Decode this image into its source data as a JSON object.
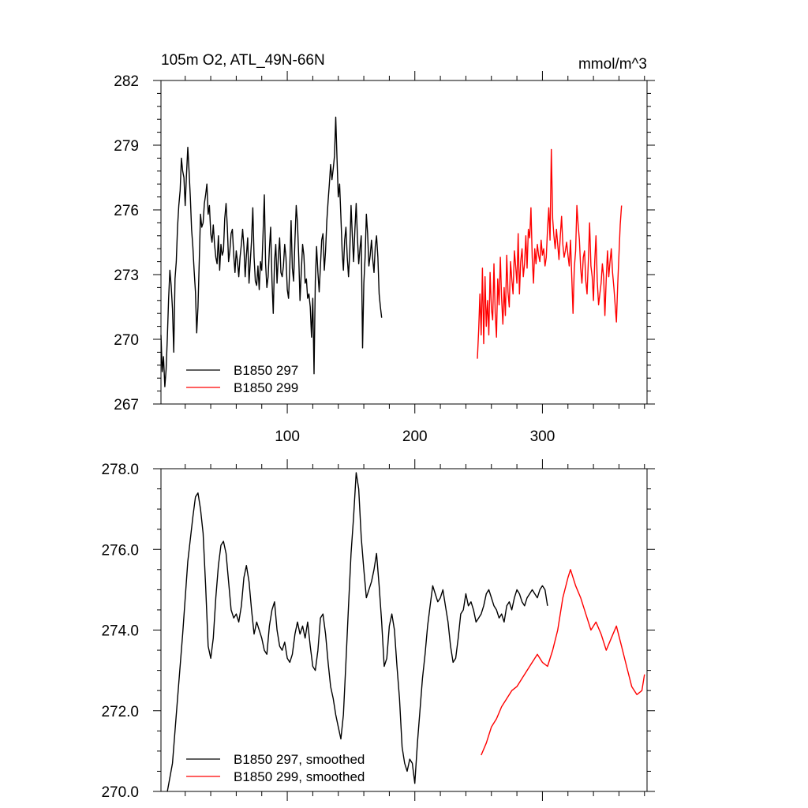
{
  "chart_data": [
    {
      "type": "line",
      "title_left": "105m O2, ATL_49N-66N",
      "title_right": "mmol/m^3",
      "xlim": [
        1,
        382
      ],
      "ylim": [
        267,
        282
      ],
      "y_ticks": [
        {
          "value": 267,
          "label": "267"
        },
        {
          "value": 270,
          "label": "270"
        },
        {
          "value": 273,
          "label": "273"
        },
        {
          "value": 276,
          "label": "276"
        },
        {
          "value": 279,
          "label": "279"
        },
        {
          "value": 282,
          "label": "282"
        }
      ],
      "x_ticks": [
        {
          "value": 100,
          "label": "100"
        },
        {
          "value": 200,
          "label": "200"
        },
        {
          "value": 300,
          "label": "300"
        }
      ],
      "series": [
        {
          "name": "B1850 297",
          "color": "#000000",
          "x_start": 1,
          "values": [
            270.2,
            268.5,
            269.2,
            267.8,
            268.6,
            270.1,
            271.9,
            273.2,
            272.5,
            271.4,
            269.4,
            272.8,
            273.6,
            275.2,
            276.2,
            276.9,
            278.4,
            277.8,
            277.5,
            276.2,
            277.6,
            278.9,
            277.8,
            276.6,
            275.1,
            274.3,
            273.2,
            272.2,
            270.3,
            271.5,
            273.6,
            275.8,
            275.2,
            275.4,
            276.3,
            276.7,
            277.2,
            275.8,
            276.2,
            274.9,
            274.5,
            275.3,
            274.4,
            273.8,
            273.5,
            274.8,
            273.2,
            274.4,
            273.9,
            274.1,
            275.6,
            276.3,
            275.2,
            273.6,
            274.1,
            274.9,
            275.1,
            273.9,
            273.1,
            274.1,
            273.6,
            272.9,
            273.8,
            274.4,
            275.1,
            274.3,
            272.9,
            273.9,
            274.7,
            272.6,
            273.6,
            274.6,
            276.1,
            273.8,
            272.7,
            272.5,
            273.4,
            272.3,
            273.6,
            273.2,
            274.8,
            276.7,
            273.5,
            272.4,
            272.9,
            274.2,
            275.2,
            272.7,
            271.2,
            273.6,
            274.4,
            272.6,
            273.8,
            274.7,
            273.1,
            272.9,
            273.4,
            274.4,
            273.8,
            272.3,
            271.9,
            273.4,
            275.5,
            273.3,
            272.7,
            274.6,
            276.2,
            275.4,
            273.8,
            271.8,
            273.1,
            274.4,
            273.9,
            272.6,
            272.8,
            271.9,
            272.1,
            271.5,
            270.1,
            271.9,
            268.4,
            272.7,
            274.3,
            273.1,
            272.2,
            273.4,
            274.6,
            274.9,
            273.2,
            274.1,
            275.5,
            276.4,
            277.2,
            278.1,
            277.4,
            277.9,
            278.5,
            280.3,
            278.4,
            276.6,
            277.2,
            275.7,
            274.1,
            273.2,
            274.6,
            275.2,
            273.8,
            272.9,
            274.1,
            276.2,
            274.8,
            273.6,
            275.1,
            276.3,
            274.7,
            273.5,
            274.2,
            274.8,
            269.6,
            272.6,
            273.8,
            275.8,
            274.9,
            273.4,
            273.9,
            274.6,
            273.7,
            273.1,
            274.3,
            274.8,
            273.8,
            272.1,
            271.5,
            271.0
          ],
          "gaps_note": ""
        },
        {
          "name": "B1850 299",
          "color": "#ff0000",
          "x_start": 249,
          "values": [
            269.1,
            270.4,
            272.1,
            270.2,
            273.3,
            269.8,
            272.9,
            270.6,
            271.8,
            270.2,
            273.1,
            271.4,
            270.9,
            273.5,
            271.2,
            270.1,
            272.8,
            271.6,
            273.8,
            271.9,
            270.7,
            272.4,
            271.1,
            273.9,
            272.2,
            271.5,
            273.6,
            272.8,
            272.1,
            274.1,
            273.4,
            272.6,
            274.9,
            272.1,
            273.6,
            274.2,
            272.9,
            273.5,
            274.8,
            273.3,
            275.1,
            274.7,
            276.1,
            273.8,
            272.6,
            274.2,
            273.5,
            274.4,
            273.9,
            273.6,
            274.6,
            273.9,
            274.2,
            273.4,
            273.8,
            275.1,
            276.1,
            274.6,
            278.8,
            275.6,
            274.8,
            274.2,
            275.1,
            274.4,
            273.7,
            274.8,
            275.7,
            274.4,
            273.8,
            274.1,
            274.5,
            273.9,
            273.4,
            274.6,
            272.9,
            271.2,
            273.3,
            274.1,
            276.2,
            275.3,
            274.6,
            273.3,
            272.6,
            273.8,
            274.1,
            272.7,
            272.1,
            273.6,
            275.4,
            273.4,
            272.9,
            271.8,
            273.6,
            274.8,
            272.7,
            271.6,
            272.1,
            272.6,
            273.5,
            272.9,
            271.1,
            272.8,
            274.1,
            272.9,
            273.6,
            274.2,
            273.1,
            272.4,
            271.6,
            270.8,
            272.5,
            273.9,
            275.3,
            276.2
          ]
        }
      ],
      "legend": {
        "placement": "bottom-left",
        "entries": [
          "B1850 297",
          "B1850 299"
        ]
      }
    },
    {
      "type": "line",
      "title_left": "",
      "title_right": "",
      "xlim": [
        1,
        382
      ],
      "ylim": [
        270.0,
        278.0
      ],
      "y_ticks": [
        {
          "value": 270,
          "label": "270.0"
        },
        {
          "value": 272,
          "label": "272.0"
        },
        {
          "value": 274,
          "label": "274.0"
        },
        {
          "value": 276,
          "label": "276.0"
        },
        {
          "value": 278,
          "label": "278.0"
        }
      ],
      "x_ticks": [
        {
          "value": 100,
          "label": ""
        },
        {
          "value": 200,
          "label": ""
        },
        {
          "value": 300,
          "label": ""
        }
      ],
      "series": [
        {
          "name": "B1850 297, smoothed",
          "color": "#000000",
          "x": [
            6,
            10,
            14,
            18,
            22,
            26,
            28,
            30,
            32,
            34,
            36,
            38,
            40,
            42,
            44,
            46,
            48,
            50,
            52,
            54,
            56,
            58,
            60,
            62,
            64,
            66,
            68,
            70,
            72,
            74,
            76,
            78,
            80,
            82,
            84,
            86,
            88,
            90,
            92,
            94,
            96,
            98,
            100,
            102,
            104,
            106,
            108,
            110,
            112,
            114,
            116,
            118,
            120,
            122,
            124,
            126,
            128,
            130,
            132,
            134,
            136,
            138,
            140,
            142,
            144,
            146,
            148,
            150,
            152,
            154,
            156,
            158,
            160,
            162,
            164,
            166,
            168,
            170,
            172,
            174,
            176,
            178,
            180,
            182,
            184,
            186,
            188,
            190,
            192,
            194,
            196,
            198,
            200,
            202,
            204,
            206,
            208,
            210,
            212,
            214,
            216,
            218,
            220,
            222,
            224,
            226,
            228,
            230,
            232,
            234,
            236,
            238,
            240,
            242,
            244,
            246,
            248,
            250,
            252,
            254,
            256,
            258,
            260,
            262,
            264,
            266,
            268,
            270,
            272,
            274,
            276,
            278,
            280,
            282,
            284,
            286,
            288,
            290,
            292,
            294,
            296,
            298,
            300,
            302,
            304
          ],
          "values": [
            270.0,
            270.7,
            272.3,
            273.9,
            275.7,
            276.8,
            277.3,
            277.4,
            277.0,
            276.4,
            275.1,
            273.6,
            273.3,
            273.8,
            274.8,
            275.6,
            276.1,
            276.2,
            275.9,
            275.2,
            274.5,
            274.3,
            274.4,
            274.2,
            274.6,
            275.3,
            275.6,
            275.2,
            274.5,
            273.9,
            274.2,
            274.0,
            273.8,
            273.5,
            273.4,
            274.1,
            274.5,
            274.7,
            274.0,
            273.6,
            273.5,
            273.7,
            273.3,
            273.2,
            273.4,
            273.9,
            274.2,
            273.9,
            274.1,
            273.8,
            274.2,
            273.6,
            273.1,
            273.0,
            273.5,
            274.3,
            274.4,
            273.9,
            273.2,
            272.6,
            272.3,
            271.9,
            271.6,
            271.3,
            271.9,
            273.2,
            274.6,
            275.9,
            276.8,
            277.9,
            277.5,
            276.3,
            275.5,
            274.8,
            275.0,
            275.2,
            275.5,
            275.9,
            275.1,
            274.2,
            273.1,
            273.3,
            274.1,
            274.4,
            274.0,
            273.1,
            272.3,
            271.1,
            270.7,
            270.5,
            270.8,
            270.7,
            270.2,
            271.2,
            272.0,
            272.8,
            273.4,
            274.1,
            274.6,
            275.1,
            274.9,
            274.7,
            274.8,
            275.0,
            274.6,
            274.2,
            273.6,
            273.2,
            273.3,
            273.8,
            274.4,
            274.5,
            274.9,
            274.6,
            274.7,
            274.5,
            274.2,
            274.3,
            274.4,
            274.6,
            274.9,
            275.0,
            274.8,
            274.6,
            274.5,
            274.3,
            274.4,
            274.2,
            274.6,
            274.7,
            274.5,
            274.8,
            275.0,
            274.9,
            274.7,
            274.6,
            274.8,
            274.9,
            275.0,
            274.9,
            274.8,
            275.0,
            275.1,
            275.0,
            274.6
          ]
        },
        {
          "name": "B1850 299, smoothed",
          "color": "#ff0000",
          "x": [
            252,
            256,
            260,
            264,
            268,
            272,
            276,
            280,
            284,
            288,
            292,
            296,
            300,
            304,
            308,
            312,
            316,
            320,
            322,
            326,
            330,
            334,
            338,
            342,
            346,
            350,
            354,
            358,
            362,
            366,
            370,
            374,
            378,
            380
          ],
          "values": [
            270.9,
            271.2,
            271.6,
            271.8,
            272.1,
            272.3,
            272.5,
            272.6,
            272.8,
            273.0,
            273.2,
            273.4,
            273.2,
            273.1,
            273.5,
            274.0,
            274.8,
            275.3,
            275.5,
            275.1,
            274.8,
            274.4,
            274.0,
            274.2,
            273.9,
            273.5,
            273.8,
            274.1,
            273.6,
            273.1,
            272.6,
            272.4,
            272.5,
            272.9
          ]
        }
      ],
      "legend": {
        "placement": "bottom-left",
        "entries": [
          "B1850 297, smoothed",
          "B1850 299, smoothed"
        ]
      }
    }
  ]
}
